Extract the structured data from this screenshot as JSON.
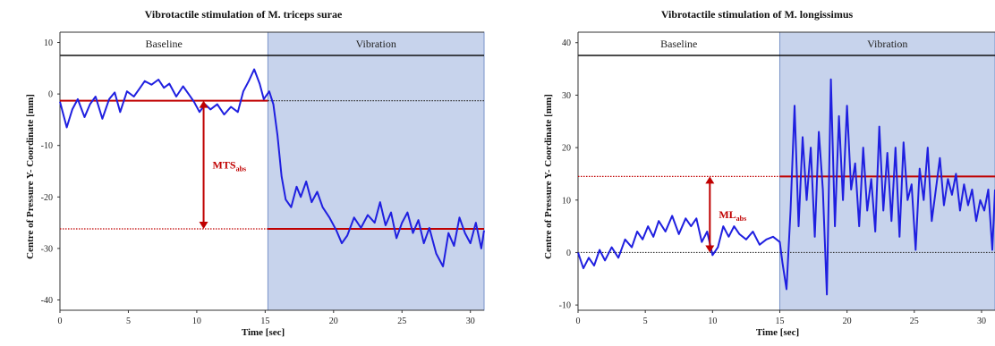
{
  "chart_data": [
    {
      "type": "line",
      "title": "Vibrotactile stimulation of M. triceps surae",
      "xlabel": "Time [sec]",
      "ylabel": "Centre of Pressure Y- Coordinate  [mm]",
      "xlim": [
        0,
        31
      ],
      "ylim": [
        -42,
        12
      ],
      "xticks": [
        0,
        5,
        10,
        15,
        20,
        25,
        30
      ],
      "yticks": [
        -40,
        -30,
        -20,
        -10,
        0,
        10
      ],
      "phases": [
        {
          "label": "Baseline",
          "x_start": 0,
          "x_end": 15.2,
          "shaded": false
        },
        {
          "label": "Vibration",
          "x_start": 15.2,
          "x_end": 31,
          "shaded": true
        }
      ],
      "reference_lines": [
        {
          "y": -1.3,
          "x_start": 0,
          "x_end": 15.2,
          "style": "solid",
          "color": "#c00000"
        },
        {
          "y": -1.3,
          "x_start": 15.2,
          "x_end": 31,
          "style": "dotted",
          "color": "#333333"
        },
        {
          "y": -26.2,
          "x_start": 0,
          "x_end": 15.2,
          "style": "dotted",
          "color": "#c00000"
        },
        {
          "y": -26.2,
          "x_start": 15.2,
          "x_end": 31,
          "style": "solid",
          "color": "#c00000"
        }
      ],
      "arrow": {
        "x": 10.5,
        "y_from": -1.3,
        "y_to": -26.2,
        "label_main": "MTS",
        "label_sub": "abs"
      },
      "series": [
        {
          "color": "#1f1fe0",
          "x": [
            0,
            0.5,
            0.9,
            1.3,
            1.8,
            2.2,
            2.6,
            3.1,
            3.6,
            4.0,
            4.4,
            4.9,
            5.4,
            5.8,
            6.2,
            6.7,
            7.2,
            7.6,
            8.0,
            8.5,
            9.0,
            9.4,
            9.8,
            10.2,
            10.6,
            11.0,
            11.5,
            12.0,
            12.5,
            13.0,
            13.4,
            13.8,
            14.2,
            14.6,
            14.9,
            15.3,
            15.6,
            15.9,
            16.2,
            16.5,
            16.9,
            17.3,
            17.6,
            18.0,
            18.4,
            18.8,
            19.2,
            19.7,
            20.2,
            20.6,
            21.0,
            21.5,
            22.0,
            22.5,
            23.0,
            23.4,
            23.8,
            24.2,
            24.6,
            25.0,
            25.4,
            25.8,
            26.2,
            26.6,
            27.0,
            27.5,
            28.0,
            28.4,
            28.8,
            29.2,
            29.6,
            30.0,
            30.4,
            30.8,
            31.0
          ],
          "y": [
            -1.5,
            -6.5,
            -3.0,
            -1.0,
            -4.5,
            -2.0,
            -0.5,
            -4.8,
            -1.0,
            0.3,
            -3.5,
            0.5,
            -0.5,
            1.0,
            2.5,
            1.8,
            2.8,
            1.2,
            2.0,
            -0.5,
            1.5,
            0.0,
            -1.5,
            -3.5,
            -2.0,
            -3.0,
            -2.0,
            -4.0,
            -2.5,
            -3.5,
            0.5,
            2.5,
            4.8,
            2.0,
            -1.0,
            0.5,
            -2.0,
            -8.0,
            -16.0,
            -20.5,
            -22.0,
            -18.0,
            -20.0,
            -17.0,
            -21.0,
            -19.0,
            -22.0,
            -24.0,
            -26.5,
            -29.0,
            -27.5,
            -24.0,
            -26.0,
            -23.5,
            -25.0,
            -21.0,
            -25.5,
            -23.0,
            -28.0,
            -25.0,
            -23.0,
            -27.0,
            -24.5,
            -29.0,
            -26.0,
            -31.0,
            -33.5,
            -27.0,
            -29.5,
            -24.0,
            -27.0,
            -29.0,
            -25.0,
            -30.0,
            -26.5
          ]
        }
      ]
    },
    {
      "type": "line",
      "title": "Vibrotactile stimulation of M. longissimus",
      "xlabel": "Time [sec]",
      "ylabel": "Centre of Pressure Y- Coordinate  [mm]",
      "xlim": [
        0,
        31
      ],
      "ylim": [
        -11,
        42
      ],
      "xticks": [
        0,
        5,
        10,
        15,
        20,
        25,
        30
      ],
      "yticks": [
        -10,
        0,
        10,
        20,
        30,
        40
      ],
      "phases": [
        {
          "label": "Baseline",
          "x_start": 0,
          "x_end": 15,
          "shaded": false
        },
        {
          "label": "Vibration",
          "x_start": 15,
          "x_end": 31,
          "shaded": true
        }
      ],
      "reference_lines": [
        {
          "y": 0,
          "x_start": 0,
          "x_end": 31,
          "style": "dotted",
          "color": "#333333"
        },
        {
          "y": 14.5,
          "x_start": 0,
          "x_end": 15,
          "style": "dotted",
          "color": "#c00000"
        },
        {
          "y": 14.5,
          "x_start": 15,
          "x_end": 31,
          "style": "solid",
          "color": "#c00000"
        }
      ],
      "arrow": {
        "x": 9.8,
        "y_from": 0,
        "y_to": 14.5,
        "label_main": "ML",
        "label_sub": "abs"
      },
      "series": [
        {
          "color": "#1f1fe0",
          "x": [
            0,
            0.4,
            0.8,
            1.2,
            1.6,
            2.0,
            2.5,
            3.0,
            3.5,
            4.0,
            4.4,
            4.8,
            5.2,
            5.6,
            6.0,
            6.5,
            7.0,
            7.5,
            8.0,
            8.4,
            8.8,
            9.2,
            9.6,
            10.0,
            10.4,
            10.8,
            11.2,
            11.6,
            12.0,
            12.5,
            13.0,
            13.5,
            14.0,
            14.5,
            15.0,
            15.2,
            15.5,
            15.8,
            16.1,
            16.4,
            16.7,
            17.0,
            17.3,
            17.6,
            17.9,
            18.2,
            18.5,
            18.8,
            19.1,
            19.4,
            19.7,
            20.0,
            20.3,
            20.6,
            20.9,
            21.2,
            21.5,
            21.8,
            22.1,
            22.4,
            22.7,
            23.0,
            23.3,
            23.6,
            23.9,
            24.2,
            24.5,
            24.8,
            25.1,
            25.4,
            25.7,
            26.0,
            26.3,
            26.6,
            26.9,
            27.2,
            27.5,
            27.8,
            28.1,
            28.4,
            28.7,
            29.0,
            29.3,
            29.6,
            29.9,
            30.2,
            30.5,
            30.8,
            31.0
          ],
          "y": [
            0.0,
            -3.0,
            -1.0,
            -2.5,
            0.5,
            -1.5,
            1.0,
            -1.0,
            2.5,
            1.0,
            4.0,
            2.5,
            5.0,
            3.0,
            6.0,
            4.0,
            7.0,
            3.5,
            6.5,
            5.0,
            6.5,
            2.0,
            4.0,
            -0.5,
            1.0,
            5.0,
            3.0,
            5.0,
            3.5,
            2.5,
            4.0,
            1.5,
            2.5,
            3.0,
            2.0,
            -2.0,
            -7.0,
            8.0,
            28.0,
            5.0,
            22.0,
            10.0,
            20.0,
            3.0,
            23.0,
            12.0,
            -8.0,
            33.0,
            5.0,
            26.0,
            10.0,
            28.0,
            12.0,
            17.0,
            5.0,
            20.0,
            8.0,
            14.0,
            4.0,
            24.0,
            8.0,
            19.0,
            6.0,
            20.0,
            3.0,
            21.0,
            10.0,
            13.0,
            0.5,
            16.0,
            10.0,
            20.0,
            6.0,
            12.0,
            18.0,
            9.0,
            14.0,
            11.0,
            15.0,
            8.0,
            13.0,
            9.0,
            12.0,
            6.0,
            10.0,
            8.0,
            12.0,
            0.5,
            12.0
          ]
        }
      ]
    }
  ]
}
